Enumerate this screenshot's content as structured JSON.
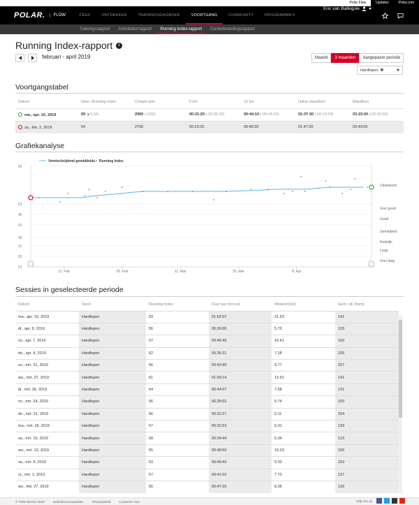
{
  "topbar": {
    "links": [
      "Polar Flow",
      "Updates",
      "Polar.com"
    ]
  },
  "brand": {
    "logo": "POLAR.",
    "product": "FLOW"
  },
  "nav": {
    "items": [
      "FEED",
      "ONTDEKKEN",
      "TRAININGSDAGBOEK",
      "VOORTGANG",
      "COMMUNITY",
      "PROGRAMMA'S"
    ],
    "active": "VOORTGANG"
  },
  "user": {
    "name": "Eric van Ballegoie"
  },
  "subnav": {
    "items": [
      "Trainingsrapport",
      "Activiteitenrapport",
      "Running Index-rapport",
      "Cardiobelastingsrapport"
    ],
    "active": "Running Index-rapport"
  },
  "page": {
    "title": "Running Index-rapport",
    "period": "februari - april 2019"
  },
  "range": {
    "options": [
      "Maand",
      "3 maanden",
      "Aangepaste periode"
    ],
    "active": "3 maanden"
  },
  "sport_filter": {
    "value": "Hardlopen"
  },
  "progress": {
    "title": "Voortgangstabel",
    "headers": [
      "Datum",
      "Gem. Running Index",
      "Cooper-test",
      "5 km",
      "10 km",
      "Halve marathon",
      "Marathon"
    ],
    "rows": [
      {
        "date": "ma., apr. 15, 2019",
        "ri": "59",
        "ri_delta": "9.3%",
        "cooper": "2950",
        "cooper_delta": "(+250)",
        "k5": "00:21:20",
        "k5_delta": "(-00:02:00)",
        "k10": "00:44:10",
        "k10_delta": "(-00:04:20)",
        "half": "01:37:30",
        "half_delta": "(-00:10:00)",
        "mar": "03:23:00",
        "mar_delta": "(-00:20:00)"
      },
      {
        "date": "za., feb. 2, 2019",
        "ri": "54",
        "cooper": "2700",
        "k5": "00:23:20",
        "k10": "00:48:30",
        "half": "01:47:30",
        "mar": "03:43:00"
      }
    ]
  },
  "chart": {
    "title": "Grafiekanalyse",
    "legend": [
      "Voortschrijdend gemiddelde",
      "Running Index"
    ],
    "y_ticks": [
      "69",
      "51",
      "46",
      "41",
      "35",
      "31",
      "26",
      "21"
    ],
    "x_ticks": [
      "11. Feb",
      "25. Feb",
      "11. Mar",
      "25. Mar",
      "8. Apr"
    ],
    "zones": [
      "Uitstekend",
      "Zeer goed",
      "Goed",
      "Gemiddeld",
      "Redelijk",
      "Laag",
      "Zeer laag"
    ]
  },
  "chart_data": {
    "type": "line",
    "y_ticks": [
      69,
      51,
      46,
      41,
      35,
      31,
      26,
      21
    ],
    "x_ticks": [
      "11. Feb",
      "25. Feb",
      "11. Mar",
      "25. Mar",
      "8. Apr"
    ],
    "zones": [
      "Uitstekend",
      "Zeer goed",
      "Goed",
      "Gemiddeld",
      "Redelijk",
      "Laag",
      "Zeer laag"
    ],
    "series": [
      {
        "name": "Voortschrijdend gemiddelde",
        "points": [
          [
            0,
            54
          ],
          [
            4,
            54
          ],
          [
            8,
            54
          ],
          [
            12,
            54
          ],
          [
            14,
            54.5
          ],
          [
            16,
            55
          ],
          [
            19,
            55.5
          ],
          [
            22,
            56
          ],
          [
            24,
            56.5
          ],
          [
            27,
            57
          ],
          [
            31,
            57
          ],
          [
            35,
            57
          ],
          [
            39,
            57
          ],
          [
            43,
            57
          ],
          [
            47,
            57
          ],
          [
            51,
            57.3
          ],
          [
            55,
            57.5
          ],
          [
            57,
            57.8
          ],
          [
            59,
            58
          ],
          [
            62,
            58
          ],
          [
            66,
            58
          ],
          [
            69,
            58.5
          ],
          [
            72,
            59
          ],
          [
            75,
            59
          ],
          [
            78,
            59
          ],
          [
            80,
            59
          ]
        ]
      },
      {
        "name": "Running Index",
        "points": [
          [
            2,
            54
          ],
          [
            7,
            52
          ],
          [
            9,
            56
          ],
          [
            13,
            55
          ],
          [
            14,
            58
          ],
          [
            16,
            54
          ],
          [
            18,
            57
          ],
          [
            22,
            59
          ],
          [
            27,
            57
          ],
          [
            33,
            57
          ],
          [
            39,
            57
          ],
          [
            44,
            53
          ],
          [
            47,
            57
          ],
          [
            53,
            58
          ],
          [
            57,
            58
          ],
          [
            61,
            56
          ],
          [
            63,
            57
          ],
          [
            65,
            64
          ],
          [
            66,
            57
          ],
          [
            71,
            62
          ],
          [
            72,
            59
          ],
          [
            75,
            56
          ],
          [
            77,
            58
          ],
          [
            78,
            63
          ],
          [
            81,
            59
          ]
        ]
      }
    ],
    "start_value": 54,
    "end_value": 59
  },
  "sessions": {
    "title": "Sessies in geselecteerde periode",
    "headers": [
      "Datum",
      "Sport",
      "Running Index",
      "Duur [uu:mm:ss]",
      "Afstand [km]",
      "Gem. HF [hsm]"
    ],
    "rows": [
      [
        "ma., apr. 15, 2019",
        "Hardlopen",
        "63",
        "01:52:01",
        "21.63",
        "141"
      ],
      [
        "di., apr. 9, 2019",
        "Hardlopen",
        "56",
        "00:26:00",
        "5.70",
        "133"
      ],
      [
        "zo., apr. 7, 2019",
        "Hardlopen",
        "57",
        "00:45:45",
        "10.41",
        "160"
      ],
      [
        "do., apr. 4, 2019",
        "Hardlopen",
        "62",
        "00:36:31",
        "7.18",
        "135"
      ],
      [
        "zo., mrt. 31, 2019",
        "Hardlopen",
        "56",
        "00:43:40",
        "9.77",
        "157"
      ],
      [
        "wo., mrt. 27, 2019",
        "Hardlopen",
        "61",
        "01:09:14",
        "13.61",
        "141"
      ],
      [
        "di., mrt. 26, 2019",
        "Hardlopen",
        "64",
        "00:44:07",
        "7.58",
        "131"
      ],
      [
        "zo., mrt. 24, 2019",
        "Hardlopen",
        "56",
        "00:28:02",
        "5.74",
        "150"
      ],
      [
        "do., mrt. 21, 2019",
        "Hardlopen",
        "56",
        "00:22:27",
        "5.11",
        "154"
      ],
      [
        "ma., mrt. 18, 2019",
        "Hardlopen",
        "57",
        "00:32:53",
        "6.31",
        "139"
      ],
      [
        "za., mrt. 16, 2019",
        "Hardlopen",
        "58",
        "00:34:44",
        "5.34",
        "123"
      ],
      [
        "wo., mrt. 13, 2019",
        "Hardlopen",
        "55",
        "00:48:50",
        "10.23",
        "156"
      ],
      [
        "za., mrt. 9, 2019",
        "Hardlopen",
        "53",
        "00:46:43",
        "9.33",
        "153"
      ],
      [
        "vr., mrt. 1, 2019",
        "Hardlopen",
        "57",
        "00:41:02",
        "7.70",
        "137"
      ],
      [
        "wo., feb. 27, 2019",
        "Hardlopen",
        "56",
        "00:47:20",
        "8.36",
        "136"
      ]
    ]
  },
  "footer": {
    "links": [
      "© Polar Electro 2019",
      "Gebruiksvoorwaarden",
      "Privacybeleid",
      "Customer care"
    ],
    "follow": "Volg ons op"
  },
  "colors": {
    "accent": "#d10027",
    "avg_line": "#5bb4e8",
    "start_marker": "#d10027",
    "end_marker": "#3a9b3a"
  }
}
